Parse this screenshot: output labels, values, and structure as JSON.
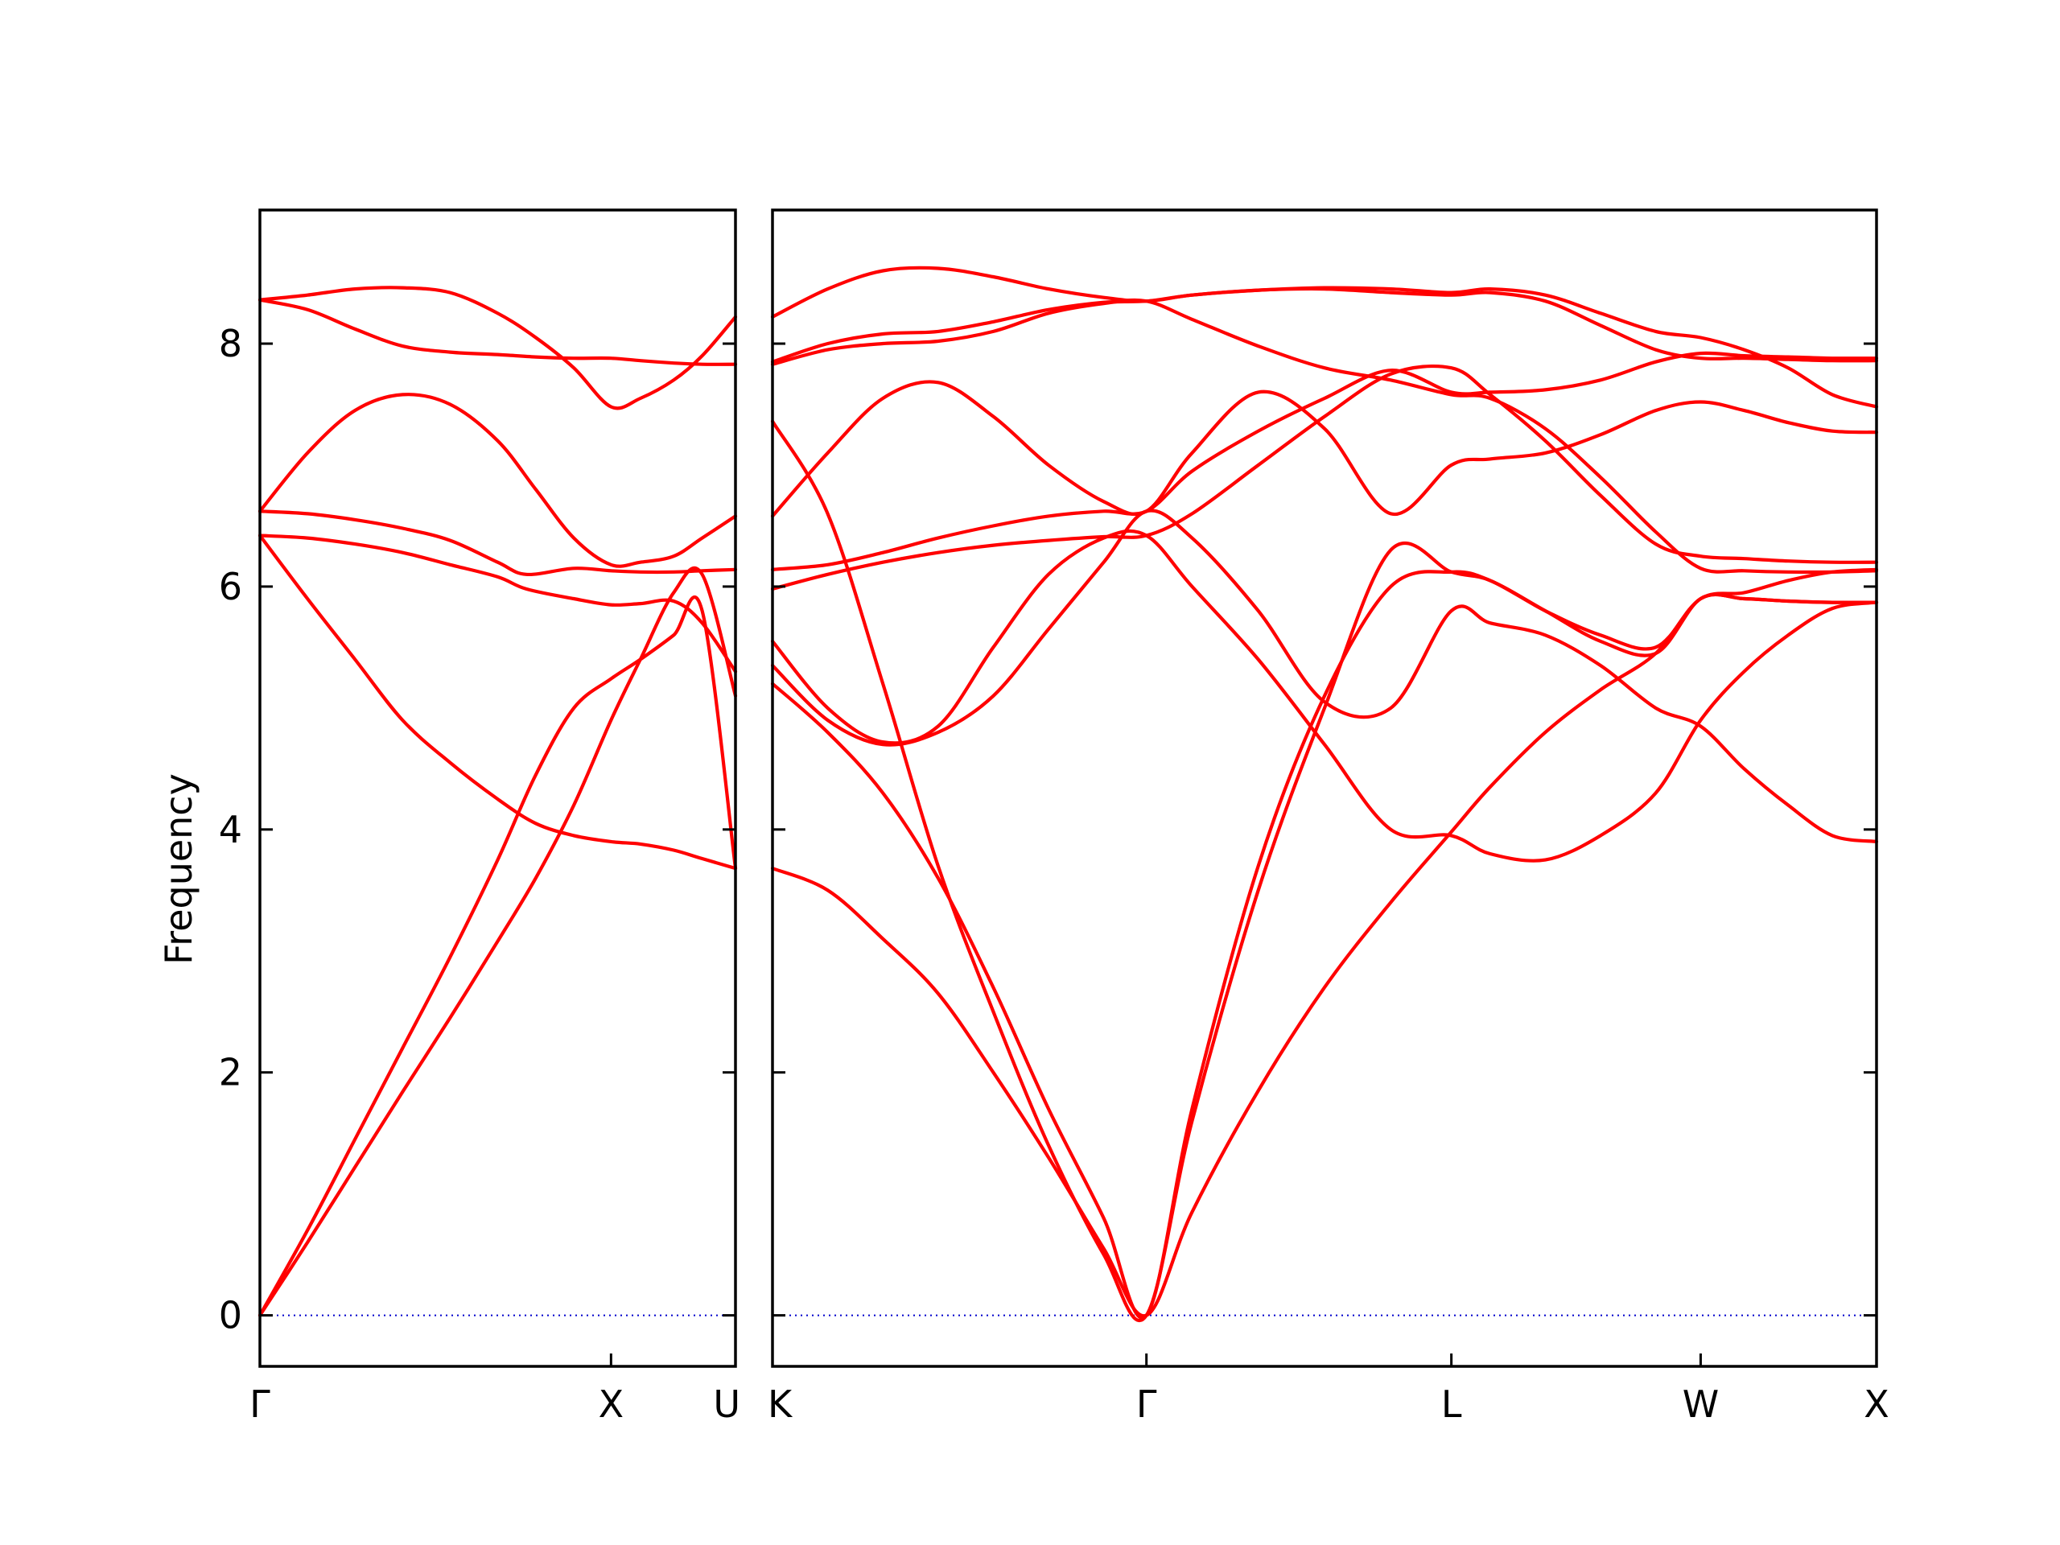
{
  "chart_data": {
    "type": "line",
    "title": "",
    "xlabel": "",
    "ylabel": "Frequency",
    "ylim": [
      -0.42,
      9.1
    ],
    "yticks": [
      0,
      2,
      4,
      6,
      8
    ],
    "grid": false,
    "colors": {
      "bands": "#ff0000",
      "zero_line": "#0000cc",
      "axes": "#000000"
    },
    "panels": [
      {
        "id": "left",
        "x_range": [
          0,
          1.0
        ],
        "high_symmetry_points": [
          {
            "label": "Γ",
            "x": 0.0
          },
          {
            "label": "X",
            "x": 0.7383
          },
          {
            "label": "U",
            "x": 1.0
          }
        ],
        "series": [
          {
            "x": [
              0,
              0.1,
              0.2,
              0.3,
              0.4,
              0.5,
              0.58,
              0.66,
              0.7383,
              0.8,
              0.87,
              0.93,
              1.0
            ],
            "y": [
              0,
              0.6,
              1.22,
              1.84,
              2.45,
              3.08,
              3.6,
              4.2,
              4.9,
              5.4,
              5.95,
              6.1,
              5.1
            ]
          },
          {
            "x": [
              0,
              0.1,
              0.2,
              0.3,
              0.4,
              0.5,
              0.58,
              0.66,
              0.7383,
              0.8,
              0.87,
              0.93,
              1.0
            ],
            "y": [
              0,
              0.7,
              1.45,
              2.2,
              2.95,
              3.75,
              4.45,
              5.0,
              5.24,
              5.4,
              5.6,
              5.8,
              3.68
            ]
          },
          {
            "x": [
              0,
              0.1,
              0.2,
              0.3,
              0.4,
              0.5,
              0.58,
              0.66,
              0.7383,
              0.8,
              0.87,
              0.93,
              1.0
            ],
            "y": [
              6.42,
              5.9,
              5.4,
              4.9,
              4.55,
              4.25,
              4.05,
              3.95,
              3.9,
              3.88,
              3.83,
              3.76,
              3.68
            ]
          },
          {
            "x": [
              0,
              0.1,
              0.2,
              0.3,
              0.4,
              0.5,
              0.56,
              0.66,
              0.7383,
              0.8,
              0.87,
              0.93,
              1.0
            ],
            "y": [
              6.42,
              6.4,
              6.35,
              6.28,
              6.18,
              6.08,
              5.98,
              5.9,
              5.85,
              5.86,
              5.88,
              5.7,
              5.3
            ]
          },
          {
            "x": [
              0,
              0.1,
              0.2,
              0.3,
              0.4,
              0.5,
              0.56,
              0.66,
              0.7383,
              0.8,
              0.87,
              0.93,
              1.0
            ],
            "y": [
              6.62,
              6.6,
              6.55,
              6.48,
              6.38,
              6.2,
              6.1,
              6.15,
              6.13,
              6.12,
              6.12,
              6.13,
              6.14
            ]
          },
          {
            "x": [
              0,
              0.1,
              0.2,
              0.3,
              0.4,
              0.5,
              0.58,
              0.66,
              0.7383,
              0.8,
              0.87,
              0.93,
              1.0
            ],
            "y": [
              6.62,
              7.1,
              7.45,
              7.58,
              7.5,
              7.2,
              6.8,
              6.4,
              6.18,
              6.2,
              6.25,
              6.4,
              6.58
            ]
          },
          {
            "x": [
              0,
              0.1,
              0.2,
              0.3,
              0.4,
              0.5,
              0.58,
              0.66,
              0.7383,
              0.8,
              0.87,
              0.93,
              1.0
            ],
            "y": [
              8.36,
              8.28,
              8.12,
              7.98,
              7.93,
              7.91,
              7.89,
              7.88,
              7.88,
              7.86,
              7.84,
              7.83,
              7.83
            ]
          },
          {
            "x": [
              0,
              0.1,
              0.2,
              0.3,
              0.4,
              0.5,
              0.58,
              0.66,
              0.7383,
              0.8,
              0.87,
              0.93,
              1.0
            ],
            "y": [
              8.36,
              8.4,
              8.45,
              8.46,
              8.42,
              8.25,
              8.05,
              7.8,
              7.48,
              7.55,
              7.7,
              7.9,
              8.22
            ]
          }
        ]
      },
      {
        "id": "right",
        "x_range": [
          0,
          1.0
        ],
        "high_symmetry_points": [
          {
            "label": "K",
            "x": 0.0
          },
          {
            "label": "Γ",
            "x": 0.3387
          },
          {
            "label": "L",
            "x": 0.6149
          },
          {
            "label": "W",
            "x": 0.8407
          },
          {
            "label": "X",
            "x": 1.0
          }
        ],
        "series": [
          {
            "x": [
              0,
              0.05,
              0.1,
              0.15,
              0.2,
              0.25,
              0.3,
              0.3387,
              0.38,
              0.44,
              0.5,
              0.56,
              0.6149,
              0.65,
              0.7,
              0.75,
              0.8,
              0.8407,
              0.88,
              0.92,
              0.96,
              1.0
            ],
            "y": [
              3.68,
              3.5,
              3.1,
              2.65,
              2.0,
              1.3,
              0.55,
              0.0,
              0.85,
              1.85,
              2.7,
              3.4,
              3.98,
              4.35,
              4.8,
              5.15,
              5.45,
              5.9,
              5.9,
              5.88,
              5.87,
              5.87
            ]
          },
          {
            "x": [
              0,
              0.05,
              0.1,
              0.15,
              0.2,
              0.25,
              0.3,
              0.3387,
              0.38,
              0.44,
              0.5,
              0.56,
              0.6149,
              0.65,
              0.7,
              0.75,
              0.8,
              0.8407,
              0.88,
              0.92,
              0.96,
              1.0
            ],
            "y": [
              5.2,
              4.8,
              4.3,
              3.6,
              2.7,
              1.7,
              0.8,
              0.0,
              1.7,
              3.7,
              5.1,
              6.0,
              6.12,
              6.05,
              5.8,
              5.55,
              5.45,
              5.9,
              5.9,
              5.88,
              5.87,
              5.87
            ]
          },
          {
            "x": [
              0,
              0.05,
              0.1,
              0.15,
              0.2,
              0.25,
              0.3,
              0.3387,
              0.38,
              0.44,
              0.5,
              0.56,
              0.6149,
              0.65,
              0.7,
              0.75,
              0.8,
              0.8407,
              0.88,
              0.92,
              0.96,
              1.0
            ],
            "y": [
              5.35,
              4.9,
              4.7,
              4.8,
              5.1,
              5.65,
              6.2,
              6.62,
              6.4,
              5.8,
              5.05,
              5.0,
              5.8,
              5.7,
              5.6,
              5.35,
              5.0,
              4.85,
              4.5,
              4.2,
              3.95,
              3.9
            ]
          },
          {
            "x": [
              0,
              0.05,
              0.1,
              0.15,
              0.2,
              0.25,
              0.3,
              0.3387,
              0.38,
              0.44,
              0.5,
              0.56,
              0.6149,
              0.65,
              0.7,
              0.75,
              0.8,
              0.8407,
              0.88,
              0.92,
              0.96,
              1.0
            ],
            "y": [
              5.55,
              5.0,
              4.72,
              4.85,
              5.5,
              6.1,
              6.4,
              6.42,
              6.0,
              5.4,
              4.7,
              4.0,
              3.95,
              3.8,
              3.75,
              3.95,
              4.3,
              4.9,
              5.3,
              5.6,
              5.82,
              5.87
            ]
          },
          {
            "x": [
              0,
              0.05,
              0.1,
              0.15,
              0.2,
              0.25,
              0.3,
              0.3387,
              0.38,
              0.44,
              0.5,
              0.56,
              0.6149,
              0.65,
              0.7,
              0.75,
              0.8,
              0.8407,
              0.88,
              0.92,
              0.96,
              1.0
            ],
            "y": [
              5.98,
              6.1,
              6.2,
              6.28,
              6.34,
              6.38,
              6.41,
              6.42,
              6.6,
              7.0,
              7.4,
              7.75,
              7.8,
              7.58,
              7.2,
              6.75,
              6.35,
              6.25,
              6.23,
              6.21,
              6.2,
              6.2
            ]
          },
          {
            "x": [
              0,
              0.05,
              0.1,
              0.15,
              0.2,
              0.25,
              0.3,
              0.3387,
              0.38,
              0.44,
              0.5,
              0.56,
              0.6149,
              0.65,
              0.7,
              0.75,
              0.8,
              0.8407,
              0.88,
              0.92,
              0.96,
              1.0
            ],
            "y": [
              6.14,
              6.18,
              6.28,
              6.4,
              6.5,
              6.58,
              6.62,
              6.62,
              6.95,
              7.28,
              7.55,
              7.78,
              7.6,
              7.6,
              7.62,
              7.7,
              7.85,
              7.92,
              7.9,
              7.89,
              7.88,
              7.88
            ]
          },
          {
            "x": [
              0,
              0.05,
              0.1,
              0.15,
              0.2,
              0.25,
              0.3,
              0.3387,
              0.38,
              0.44,
              0.5,
              0.56,
              0.6149,
              0.65,
              0.7,
              0.75,
              0.8,
              0.8407,
              0.88,
              0.92,
              0.96,
              1.0
            ],
            "y": [
              6.58,
              7.1,
              7.55,
              7.68,
              7.4,
              7.0,
              6.7,
              6.62,
              7.1,
              7.6,
              7.3,
              6.6,
              7.0,
              7.05,
              7.1,
              7.25,
              7.45,
              7.52,
              7.45,
              7.35,
              7.28,
              7.27
            ]
          },
          {
            "x": [
              0,
              0.05,
              0.1,
              0.15,
              0.2,
              0.25,
              0.3,
              0.3387,
              0.38,
              0.44,
              0.5,
              0.56,
              0.6149,
              0.65,
              0.7,
              0.75,
              0.8,
              0.8407,
              0.88,
              0.92,
              0.96,
              1.0
            ],
            "y": [
              7.36,
              6.6,
              5.2,
              3.7,
              2.5,
              1.4,
              0.5,
              0.0,
              1.6,
              3.5,
              5.0,
              6.3,
              6.12,
              6.05,
              5.8,
              5.6,
              5.5,
              5.9,
              5.95,
              6.05,
              6.12,
              6.14
            ]
          },
          {
            "x": [
              0,
              0.05,
              0.1,
              0.15,
              0.2,
              0.25,
              0.3,
              0.3387,
              0.38,
              0.44,
              0.5,
              0.56,
              0.6149,
              0.65,
              0.7,
              0.75,
              0.8,
              0.8407,
              0.88,
              0.92,
              0.96,
              1.0
            ],
            "y": [
              7.83,
              7.95,
              8.0,
              8.02,
              8.1,
              8.25,
              8.33,
              8.35,
              8.2,
              7.98,
              7.8,
              7.7,
              7.58,
              7.55,
              7.3,
              6.9,
              6.45,
              6.15,
              6.13,
              6.12,
              6.12,
              6.13
            ]
          },
          {
            "x": [
              0,
              0.05,
              0.1,
              0.15,
              0.2,
              0.25,
              0.3,
              0.3387,
              0.38,
              0.44,
              0.5,
              0.56,
              0.6149,
              0.65,
              0.7,
              0.75,
              0.8,
              0.8407,
              0.88,
              0.92,
              0.96,
              1.0
            ],
            "y": [
              7.85,
              8.0,
              8.08,
              8.1,
              8.18,
              8.28,
              8.34,
              8.35,
              8.4,
              8.44,
              8.45,
              8.42,
              8.4,
              8.42,
              8.35,
              8.15,
              7.95,
              7.88,
              7.88,
              7.87,
              7.86,
              7.86
            ]
          },
          {
            "x": [
              0,
              0.05,
              0.1,
              0.15,
              0.2,
              0.25,
              0.3,
              0.3387,
              0.38,
              0.44,
              0.5,
              0.56,
              0.6149,
              0.65,
              0.7,
              0.75,
              0.8,
              0.8407,
              0.88,
              0.92,
              0.96,
              1.0
            ],
            "y": [
              8.22,
              8.45,
              8.6,
              8.62,
              8.55,
              8.45,
              8.38,
              8.35,
              8.4,
              8.44,
              8.46,
              8.45,
              8.42,
              8.45,
              8.4,
              8.25,
              8.1,
              8.05,
              7.95,
              7.8,
              7.58,
              7.48
            ]
          }
        ]
      }
    ]
  }
}
